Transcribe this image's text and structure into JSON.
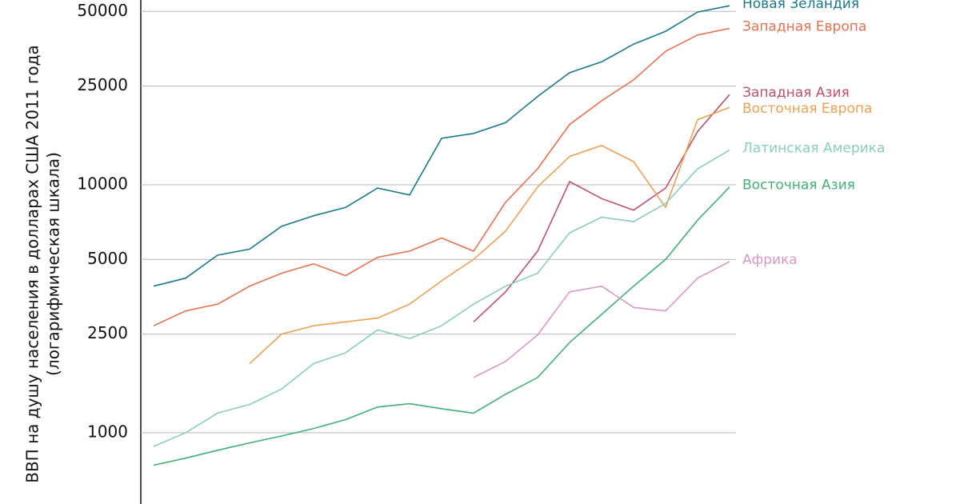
{
  "chart_data": {
    "type": "line",
    "log_scale": true,
    "grid": true,
    "legend": "right",
    "y_label": [
      "ВВП на душу населения в долларах США 2011 года",
      "(логарифмическая шкала)"
    ],
    "categories": [
      null,
      null,
      null,
      null,
      null,
      null,
      null,
      null,
      null,
      null,
      null,
      null,
      null,
      null,
      null,
      null,
      null,
      null,
      null
    ],
    "ylim": [
      516,
      55600
    ],
    "yticks": [
      1000,
      2500,
      5000,
      10000,
      25000,
      50000
    ],
    "series": [
      {
        "name": "Новая Зеландия",
        "color": "#1a7a8c",
        "values": [
          3900,
          4200,
          5200,
          5500,
          6800,
          7500,
          8100,
          9700,
          9100,
          15400,
          16100,
          17800,
          22700,
          28300,
          31300,
          36900,
          41600,
          49700,
          52700
        ]
      },
      {
        "name": "Западная Европа",
        "color": "#e8704f",
        "values": [
          2700,
          3100,
          3300,
          3900,
          4400,
          4800,
          4300,
          5100,
          5400,
          6100,
          5400,
          8500,
          11600,
          17500,
          21800,
          26500,
          34500,
          40200,
          42700
        ]
      },
      {
        "name": "Западная Азия",
        "color": "#c0506a",
        "values": [
          null,
          null,
          null,
          null,
          null,
          null,
          null,
          null,
          null,
          null,
          2800,
          3700,
          5400,
          10300,
          8800,
          7900,
          9700,
          16400,
          23100
        ]
      },
      {
        "name": "Восточная Европа",
        "color": "#f0a050",
        "values": [
          null,
          null,
          null,
          1900,
          2500,
          2700,
          2800,
          2900,
          3300,
          4100,
          5000,
          6500,
          9800,
          13000,
          14400,
          12400,
          8100,
          18300,
          20500
        ]
      },
      {
        "name": "Латинская Америка",
        "color": "#88d0b8",
        "values": [
          880,
          1000,
          1200,
          1300,
          1500,
          1900,
          2100,
          2600,
          2400,
          2700,
          3300,
          3900,
          4400,
          6400,
          7400,
          7100,
          8400,
          11600,
          13800
        ]
      },
      {
        "name": "Восточная Азия",
        "color": "#40b078",
        "values": [
          740,
          790,
          850,
          910,
          970,
          1040,
          1130,
          1270,
          1310,
          1250,
          1200,
          1430,
          1670,
          2310,
          3000,
          3900,
          5000,
          7200,
          9800
        ]
      },
      {
        "name": "Африка",
        "color": "#d898c8",
        "values": [
          null,
          null,
          null,
          null,
          null,
          null,
          null,
          null,
          null,
          null,
          1670,
          1940,
          2480,
          3700,
          3900,
          3200,
          3100,
          4200,
          4900
        ]
      }
    ]
  }
}
